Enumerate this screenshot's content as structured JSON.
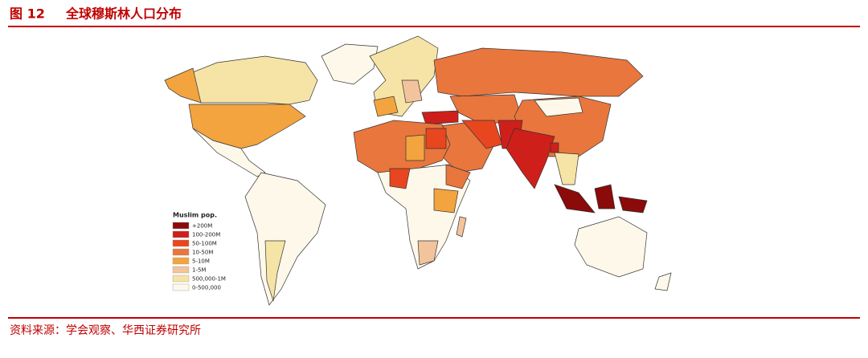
{
  "header": {
    "figure_no": "图 12",
    "title": "全球穆斯林人口分布"
  },
  "legend": {
    "title": "Muslim pop.",
    "items": [
      {
        "label": "+200M",
        "color": "#8b0a0a"
      },
      {
        "label": "100-200M",
        "color": "#cf1f1a"
      },
      {
        "label": "50-100M",
        "color": "#e8461f"
      },
      {
        "label": "10-50M",
        "color": "#e9763d"
      },
      {
        "label": "5-10M",
        "color": "#f3a43f"
      },
      {
        "label": "1-5M",
        "color": "#f3c39c"
      },
      {
        "label": "500,000-1M",
        "color": "#f6e4a6"
      },
      {
        "label": "0-500,000",
        "color": "#fdf8ea"
      }
    ]
  },
  "source": "资料来源：学会观察、华西证券研究所"
}
